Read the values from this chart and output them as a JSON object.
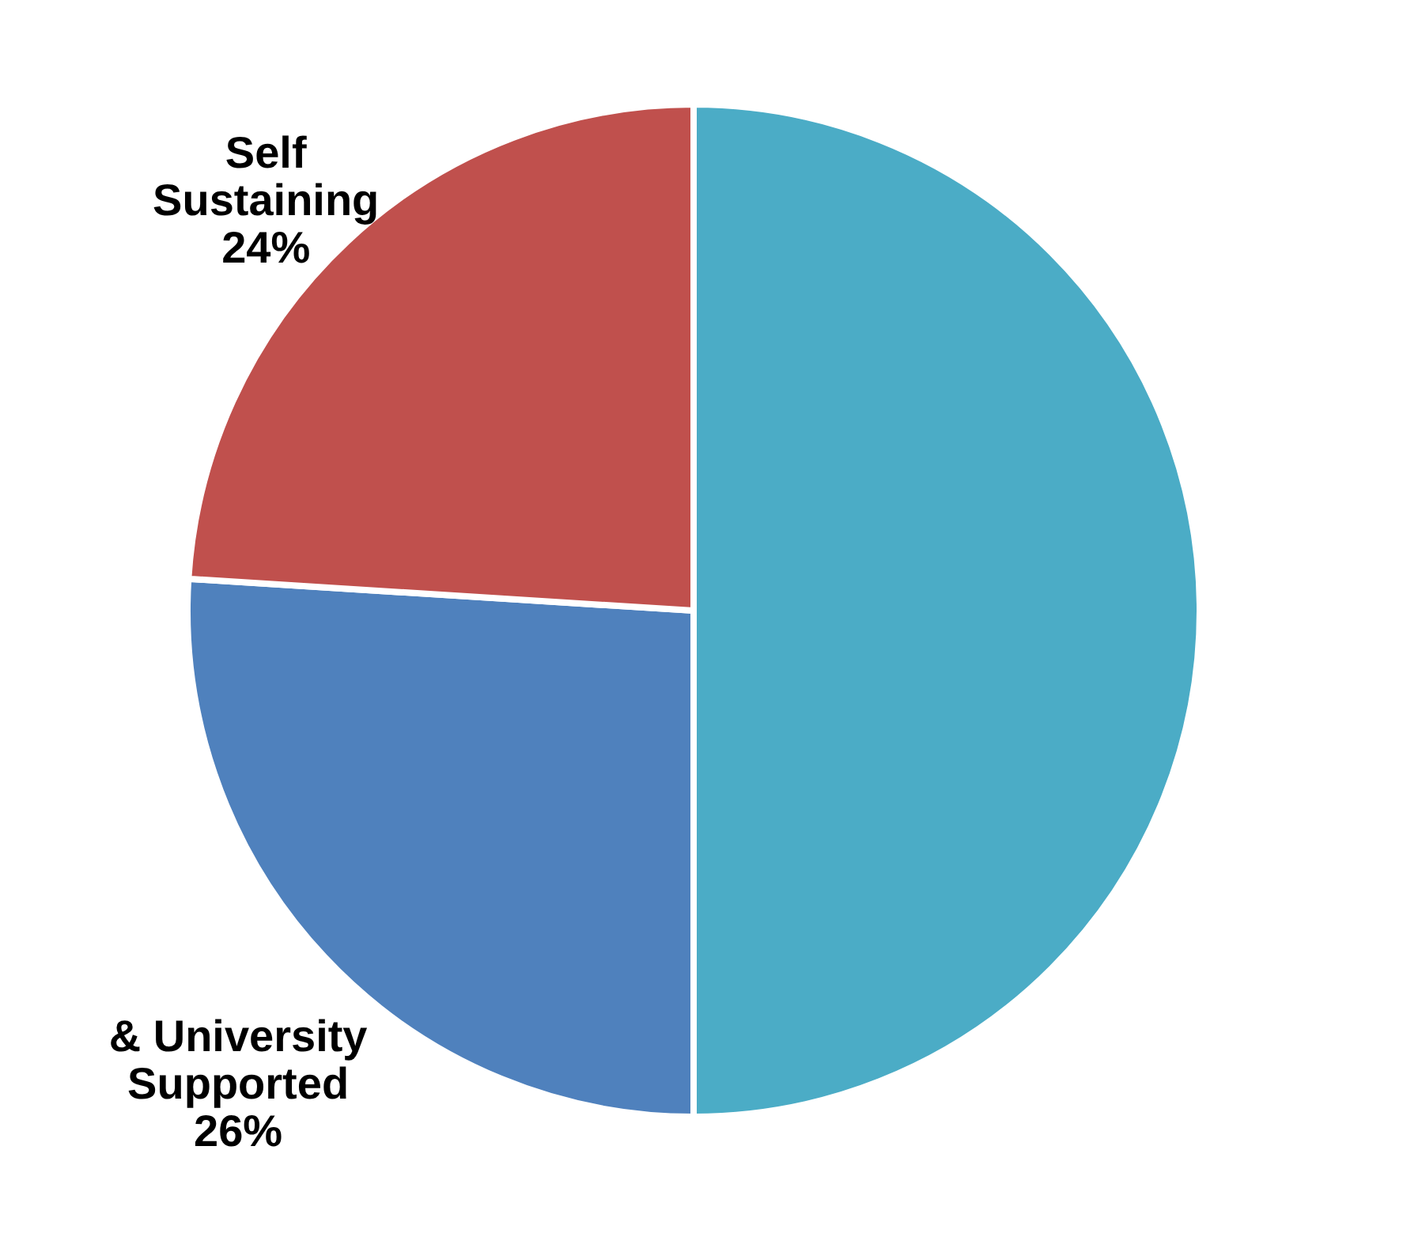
{
  "chart_data": {
    "type": "pie",
    "categories": [
      null,
      "& University Supported",
      "Self Sustaining"
    ],
    "values": [
      50,
      26,
      24
    ],
    "colors": [
      "#4bacc6",
      "#4f81bd",
      "#c0504d"
    ],
    "value_labels": [
      null,
      "26%",
      "24%"
    ],
    "legend": false
  }
}
